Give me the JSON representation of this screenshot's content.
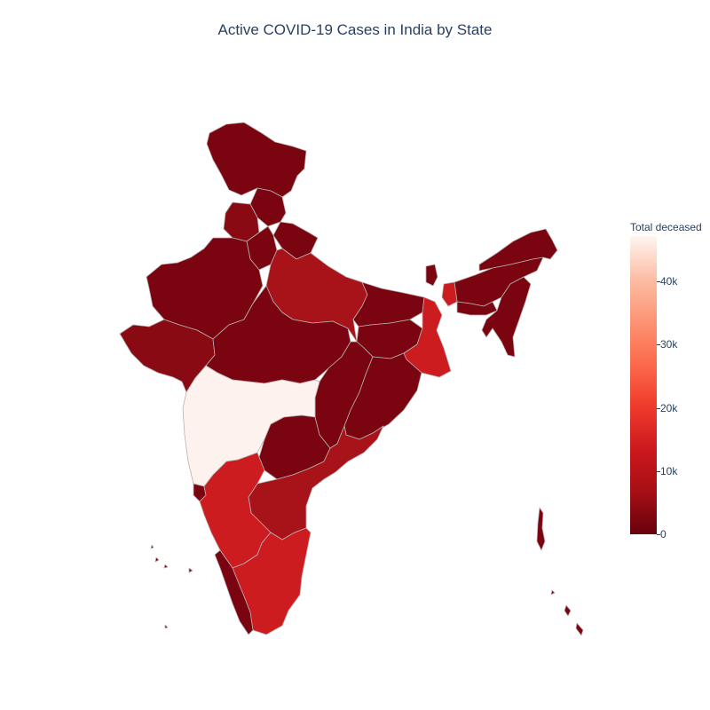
{
  "title": "Active COVID-19 Cases in India by State",
  "colorbar": {
    "title": "Total deceased",
    "ticks": [
      "0",
      "10k",
      "20k",
      "30k",
      "40k"
    ],
    "tick_values": [
      0,
      10000,
      20000,
      30000,
      40000
    ],
    "range": [
      0,
      47000
    ],
    "colorscale": [
      "#67000d",
      "#a50f15",
      "#cb181d",
      "#ef3b2c",
      "#fb6a4a",
      "#fc9272",
      "#fcbba1",
      "#fff5f0"
    ]
  },
  "colors": {
    "darkest": "#7a0510",
    "dark": "#8a0a14",
    "mid": "#a8131a",
    "bright": "#cd1c20",
    "lightest": "#fdf2ee",
    "border": "#b9b0b0"
  }
}
